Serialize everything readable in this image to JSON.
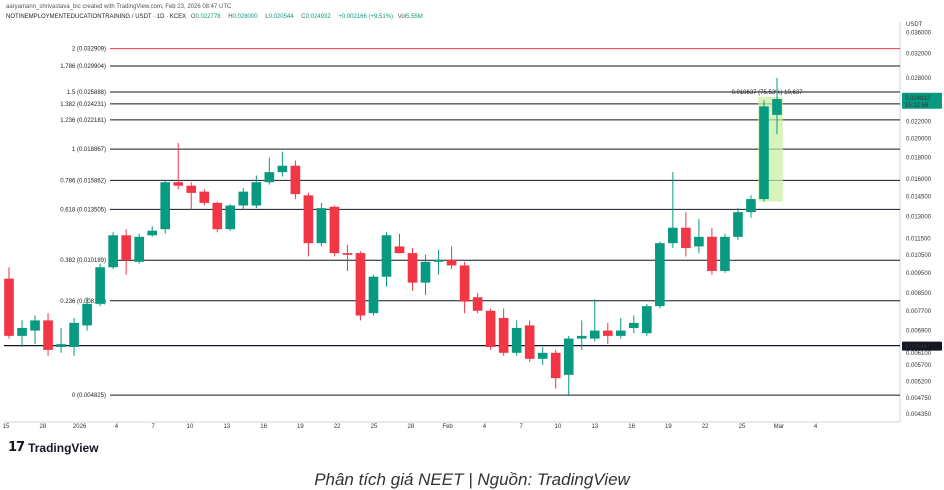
{
  "header": {
    "creator_line": "aaryamann_shrivastava_bic created with TradingView.com, Feb 23, 2026 08:47 UTC",
    "symbol": "NOTINEMPLOYMENTEDUCATIONTRAINING / USDT · 1D · KCEX",
    "open_label": "O",
    "open": "0.022778",
    "high_label": "H",
    "high": "0.028000",
    "low_label": "L",
    "low": "0.020544",
    "close_label": "C",
    "close": "0.024932",
    "change": "+0.002166 (+9.51%)",
    "vol_label": "Vol",
    "vol": "5.55M"
  },
  "currency": "USDT",
  "brand": {
    "mark": "17",
    "name": "TradingView"
  },
  "caption": "Phân tích giá NEET | Nguồn: TradingView",
  "colors": {
    "up": "#089981",
    "down": "#f23645",
    "fib_top": "#f23645",
    "fib": "#131722",
    "highlight": "#c8f0a0"
  },
  "chart_data": {
    "type": "candlestick",
    "title": "NOTINEMPLOYMENTEDUCATIONTRAINING / USDT · 1D · KCEX",
    "xlabel": "",
    "ylabel": "USDT",
    "ylim": [
      0.00425,
      0.0365
    ],
    "y_ticks": [
      "0.036000",
      "0.032000",
      "0.028000",
      "0.024000",
      "0.022000",
      "0.020000",
      "0.018000",
      "0.016000",
      "0.014500",
      "0.013000",
      "0.011500",
      "0.010500",
      "0.009500",
      "0.008500",
      "0.007700",
      "0.006900",
      "0.006100",
      "0.005700",
      "0.005200",
      "0.004750",
      "0.004350"
    ],
    "x_ticks": [
      "15",
      "28",
      "2026",
      "4",
      "7",
      "10",
      "13",
      "16",
      "19",
      "22",
      "25",
      "28",
      "Feb",
      "4",
      "7",
      "10",
      "13",
      "16",
      "19",
      "22",
      "25",
      "Mar",
      "4"
    ],
    "last_price": {
      "label": "0.024932",
      "timer": "15:12:59",
      "value": 0.024932
    },
    "marker_price": {
      "label": "0.006347",
      "value": 0.006347
    },
    "measure_label": "0.010637 (75.53%) 10,637",
    "fib_levels": [
      {
        "ratio": "2",
        "price": "0.032909",
        "value": 0.032909,
        "label": "2 (0.032909)",
        "color": "#f23645"
      },
      {
        "ratio": "1.786",
        "price": "0.029904",
        "value": 0.029904,
        "label": "1.786 (0.029904)",
        "color": "#131722"
      },
      {
        "ratio": "1.5",
        "price": "0.025888",
        "value": 0.025888,
        "label": "1.5 (0.025888)",
        "color": "#131722"
      },
      {
        "ratio": "1.382",
        "price": "0.024231",
        "value": 0.024231,
        "label": "1.382 (0.024231)",
        "color": "#131722"
      },
      {
        "ratio": "1.236",
        "price": "0.022181",
        "value": 0.022181,
        "label": "1.236 (0.022181)",
        "color": "#131722"
      },
      {
        "ratio": "1",
        "price": "0.018867",
        "value": 0.018867,
        "label": "1 (0.018867)",
        "color": "#131722"
      },
      {
        "ratio": "0.786",
        "price": "0.015862",
        "value": 0.015862,
        "label": "0.786 (0.015862)",
        "color": "#131722"
      },
      {
        "ratio": "0.618",
        "price": "0.013505",
        "value": 0.013505,
        "label": "0.618 (0.013505)",
        "color": "#131722"
      },
      {
        "ratio": "0.382",
        "price": "0.010189",
        "value": 0.010189,
        "label": "0.382 (0.010189)",
        "color": "#131722"
      },
      {
        "ratio": "0.236",
        "price": "0.008138",
        "value": 0.008138,
        "label": "0.236 (0.008138)",
        "color": "#131722"
      },
      {
        "ratio": "0",
        "price": "0.004825",
        "value": 0.004825,
        "label": "0 (0.004825)",
        "color": "#131722"
      }
    ],
    "candles": [
      {
        "o": 0.0092,
        "h": 0.0098,
        "l": 0.0066,
        "c": 0.0067
      },
      {
        "o": 0.0067,
        "h": 0.0073,
        "l": 0.0063,
        "c": 0.007
      },
      {
        "o": 0.0069,
        "h": 0.0075,
        "l": 0.0064,
        "c": 0.0073
      },
      {
        "o": 0.0073,
        "h": 0.0076,
        "l": 0.006,
        "c": 0.0062
      },
      {
        "o": 0.0063,
        "h": 0.007,
        "l": 0.0061,
        "c": 0.0064
      },
      {
        "o": 0.0063,
        "h": 0.0074,
        "l": 0.006,
        "c": 0.0072
      },
      {
        "o": 0.0071,
        "h": 0.0083,
        "l": 0.0069,
        "c": 0.008
      },
      {
        "o": 0.008,
        "h": 0.01,
        "l": 0.0079,
        "c": 0.0098
      },
      {
        "o": 0.0098,
        "h": 0.0119,
        "l": 0.0097,
        "c": 0.0117
      },
      {
        "o": 0.0117,
        "h": 0.0121,
        "l": 0.0094,
        "c": 0.0102
      },
      {
        "o": 0.0101,
        "h": 0.0118,
        "l": 0.01,
        "c": 0.0116
      },
      {
        "o": 0.0117,
        "h": 0.0123,
        "l": 0.0116,
        "c": 0.012
      },
      {
        "o": 0.0121,
        "h": 0.0158,
        "l": 0.0118,
        "c": 0.0157
      },
      {
        "o": 0.0157,
        "h": 0.0195,
        "l": 0.0151,
        "c": 0.0154
      },
      {
        "o": 0.0154,
        "h": 0.0157,
        "l": 0.0135,
        "c": 0.0148
      },
      {
        "o": 0.0149,
        "h": 0.0151,
        "l": 0.0138,
        "c": 0.014
      },
      {
        "o": 0.014,
        "h": 0.0141,
        "l": 0.0119,
        "c": 0.0121
      },
      {
        "o": 0.0121,
        "h": 0.0139,
        "l": 0.012,
        "c": 0.0138
      },
      {
        "o": 0.0138,
        "h": 0.0152,
        "l": 0.0135,
        "c": 0.0149
      },
      {
        "o": 0.0138,
        "h": 0.0163,
        "l": 0.0136,
        "c": 0.0157
      },
      {
        "o": 0.0157,
        "h": 0.018,
        "l": 0.0155,
        "c": 0.0166
      },
      {
        "o": 0.0166,
        "h": 0.0186,
        "l": 0.0162,
        "c": 0.0172
      },
      {
        "o": 0.0172,
        "h": 0.0177,
        "l": 0.0143,
        "c": 0.0147
      },
      {
        "o": 0.0146,
        "h": 0.0148,
        "l": 0.0104,
        "c": 0.0112
      },
      {
        "o": 0.0112,
        "h": 0.014,
        "l": 0.011,
        "c": 0.0136
      },
      {
        "o": 0.0137,
        "h": 0.0138,
        "l": 0.0104,
        "c": 0.0106
      },
      {
        "o": 0.0106,
        "h": 0.0111,
        "l": 0.0096,
        "c": 0.0105
      },
      {
        "o": 0.0106,
        "h": 0.0107,
        "l": 0.0073,
        "c": 0.0075
      },
      {
        "o": 0.0076,
        "h": 0.0094,
        "l": 0.0075,
        "c": 0.0093
      },
      {
        "o": 0.0093,
        "h": 0.0119,
        "l": 0.0088,
        "c": 0.0117
      },
      {
        "o": 0.011,
        "h": 0.0118,
        "l": 0.0106,
        "c": 0.0106
      },
      {
        "o": 0.0106,
        "h": 0.0109,
        "l": 0.0086,
        "c": 0.009
      },
      {
        "o": 0.009,
        "h": 0.0105,
        "l": 0.0084,
        "c": 0.0101
      },
      {
        "o": 0.0101,
        "h": 0.0108,
        "l": 0.0094,
        "c": 0.0102
      },
      {
        "o": 0.0102,
        "h": 0.011,
        "l": 0.0097,
        "c": 0.0099
      },
      {
        "o": 0.0099,
        "h": 0.0101,
        "l": 0.0076,
        "c": 0.0081
      },
      {
        "o": 0.0083,
        "h": 0.0085,
        "l": 0.0076,
        "c": 0.0077
      },
      {
        "o": 0.0077,
        "h": 0.0078,
        "l": 0.0062,
        "c": 0.0063
      },
      {
        "o": 0.0074,
        "h": 0.0078,
        "l": 0.006,
        "c": 0.0061
      },
      {
        "o": 0.0061,
        "h": 0.0073,
        "l": 0.006,
        "c": 0.007
      },
      {
        "o": 0.0071,
        "h": 0.0073,
        "l": 0.0058,
        "c": 0.0059
      },
      {
        "o": 0.0059,
        "h": 0.0063,
        "l": 0.0057,
        "c": 0.0061
      },
      {
        "o": 0.0061,
        "h": 0.0062,
        "l": 0.005,
        "c": 0.0053
      },
      {
        "o": 0.0054,
        "h": 0.0067,
        "l": 0.0048,
        "c": 0.0066
      },
      {
        "o": 0.0066,
        "h": 0.0073,
        "l": 0.0062,
        "c": 0.0067
      },
      {
        "o": 0.0066,
        "h": 0.0082,
        "l": 0.0065,
        "c": 0.0069
      },
      {
        "o": 0.0069,
        "h": 0.0072,
        "l": 0.0064,
        "c": 0.0067
      },
      {
        "o": 0.0067,
        "h": 0.0074,
        "l": 0.0066,
        "c": 0.0069
      },
      {
        "o": 0.007,
        "h": 0.0075,
        "l": 0.0068,
        "c": 0.0072
      },
      {
        "o": 0.0068,
        "h": 0.008,
        "l": 0.0067,
        "c": 0.0079
      },
      {
        "o": 0.0079,
        "h": 0.0113,
        "l": 0.0078,
        "c": 0.0112
      },
      {
        "o": 0.0112,
        "h": 0.0166,
        "l": 0.0109,
        "c": 0.0122
      },
      {
        "o": 0.0122,
        "h": 0.0133,
        "l": 0.0104,
        "c": 0.0109
      },
      {
        "o": 0.011,
        "h": 0.0128,
        "l": 0.0106,
        "c": 0.0116
      },
      {
        "o": 0.0116,
        "h": 0.0122,
        "l": 0.0094,
        "c": 0.0096
      },
      {
        "o": 0.0096,
        "h": 0.0118,
        "l": 0.0095,
        "c": 0.0116
      },
      {
        "o": 0.0116,
        "h": 0.0136,
        "l": 0.0114,
        "c": 0.0133
      },
      {
        "o": 0.0133,
        "h": 0.0146,
        "l": 0.0129,
        "c": 0.0143
      },
      {
        "o": 0.0143,
        "h": 0.0247,
        "l": 0.0141,
        "c": 0.0239
      },
      {
        "o": 0.0228,
        "h": 0.028,
        "l": 0.0205,
        "c": 0.0249
      }
    ]
  }
}
